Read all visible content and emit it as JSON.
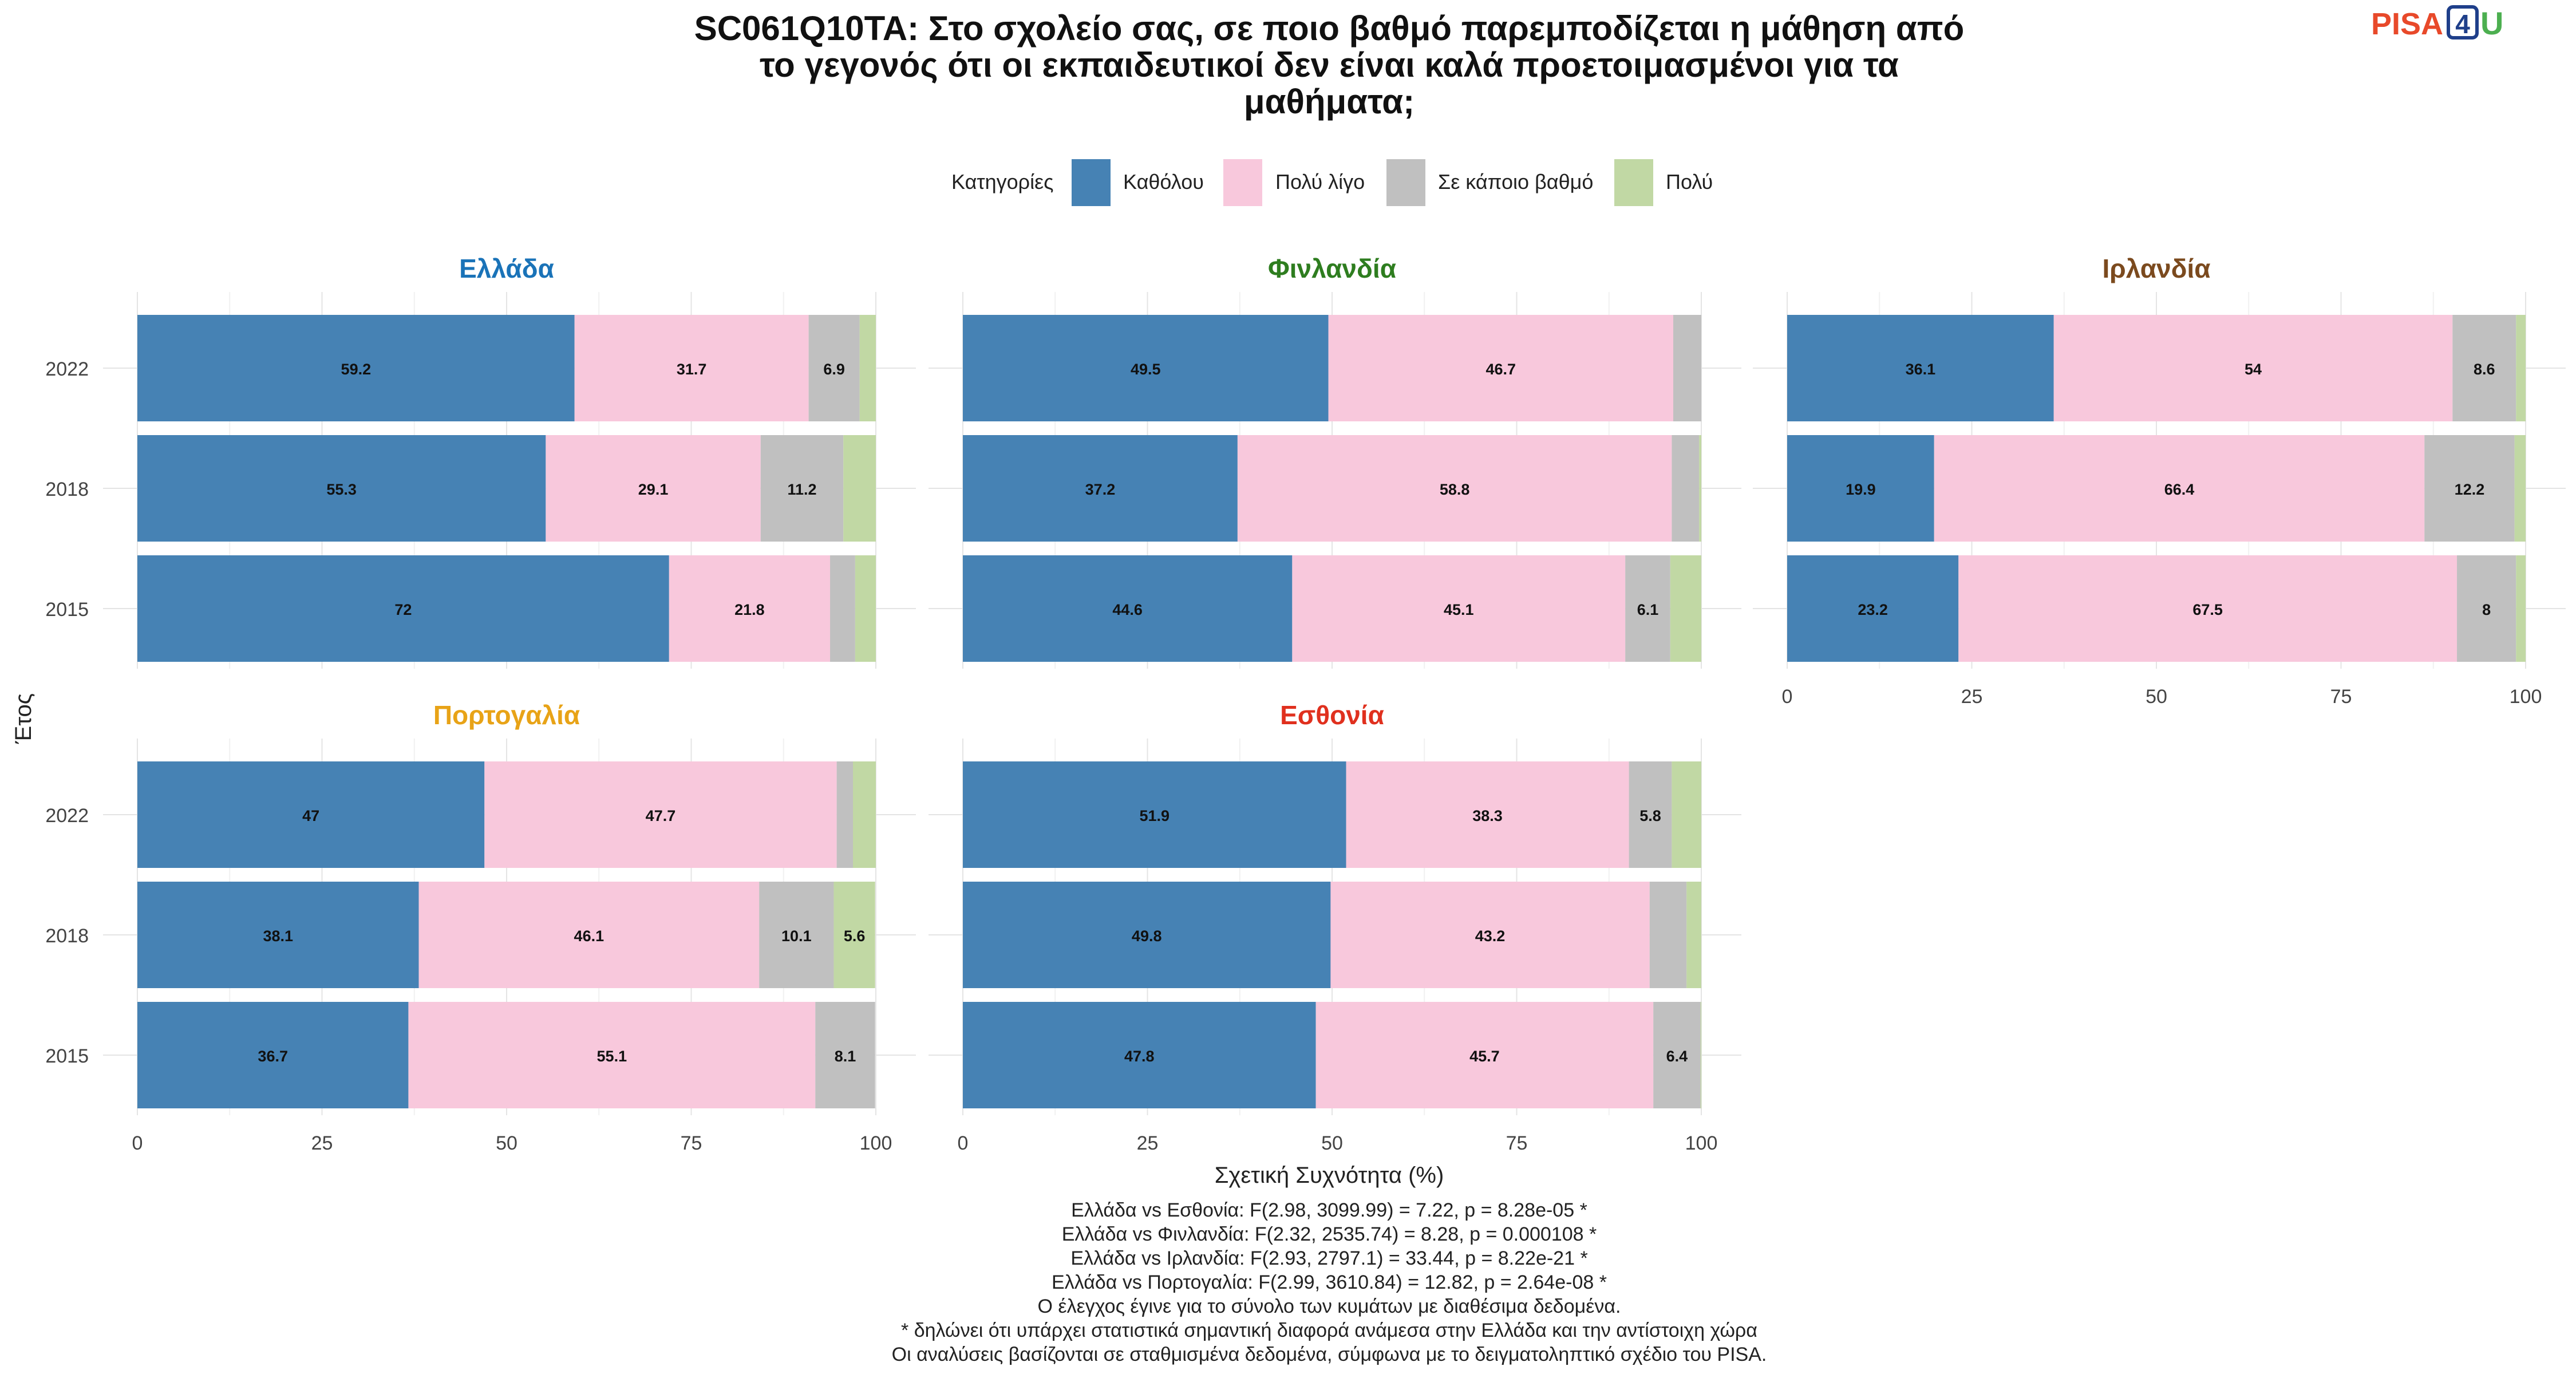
{
  "logo": {
    "text_main": "PISA",
    "text_num": "4",
    "text_end": "U"
  },
  "title_lines": [
    "SC061Q10TA: Στο σχολείο σας, σε ποιο βαθμό παρεμποδίζεται η μάθηση από",
    "το γεγονός ότι οι εκπαιδευτικοί δεν είναι καλά προετοιμασμένοι για τα",
    "μαθήματα;"
  ],
  "legend": {
    "title": "Κατηγορίες",
    "position": "top",
    "items": [
      {
        "label": "Καθόλου",
        "color": "#4682B4"
      },
      {
        "label": "Πολύ λίγο",
        "color": "#F8C8DC"
      },
      {
        "label": "Σε κάποιο βαθμό",
        "color": "#C0C0C0"
      },
      {
        "label": "Πολύ",
        "color": "#C1D8A4"
      }
    ]
  },
  "chart_data": {
    "type": "bar",
    "orientation": "horizontal-stacked",
    "xlabel": "Σχετική Συχνότητα (%)",
    "ylabel": "Έτος",
    "xlim": [
      0,
      100
    ],
    "xticks": [
      0,
      25,
      50,
      75,
      100
    ],
    "categories": [
      "2022",
      "2018",
      "2015"
    ],
    "grid": true,
    "panels": [
      {
        "country": "Ελλάδα",
        "title_color": "#1A73B8",
        "rows": [
          {
            "year": "2022",
            "values": [
              59.2,
              31.7,
              6.9,
              2.2
            ],
            "labels": [
              "59.2",
              "31.7",
              "6.9",
              ""
            ]
          },
          {
            "year": "2018",
            "values": [
              55.3,
              29.1,
              11.2,
              4.4
            ],
            "labels": [
              "55.3",
              "29.1",
              "11.2",
              ""
            ]
          },
          {
            "year": "2015",
            "values": [
              72,
              21.8,
              3.4,
              2.8
            ],
            "labels": [
              "72",
              "21.8",
              "",
              ""
            ]
          }
        ]
      },
      {
        "country": "Φινλανδία",
        "title_color": "#2E7D1F",
        "rows": [
          {
            "year": "2022",
            "values": [
              49.5,
              46.7,
              3.8,
              0
            ],
            "labels": [
              "49.5",
              "46.7",
              "",
              ""
            ]
          },
          {
            "year": "2018",
            "values": [
              37.2,
              58.8,
              3.7,
              0.3
            ],
            "labels": [
              "37.2",
              "58.8",
              "",
              ""
            ]
          },
          {
            "year": "2015",
            "values": [
              44.6,
              45.1,
              6.1,
              4.2
            ],
            "labels": [
              "44.6",
              "45.1",
              "6.1",
              ""
            ]
          }
        ]
      },
      {
        "country": "Ιρλανδία",
        "title_color": "#7B4A1E",
        "rows": [
          {
            "year": "2022",
            "values": [
              36.1,
              54,
              8.6,
              1.3
            ],
            "labels": [
              "36.1",
              "54",
              "8.6",
              ""
            ]
          },
          {
            "year": "2018",
            "values": [
              19.9,
              66.4,
              12.2,
              1.5
            ],
            "labels": [
              "19.9",
              "66.4",
              "12.2",
              ""
            ]
          },
          {
            "year": "2015",
            "values": [
              23.2,
              67.5,
              8,
              1.3
            ],
            "labels": [
              "23.2",
              "67.5",
              "8",
              ""
            ]
          }
        ]
      },
      {
        "country": "Πορτογαλία",
        "title_color": "#E8A317",
        "rows": [
          {
            "year": "2022",
            "values": [
              47,
              47.7,
              2.2,
              3.1
            ],
            "labels": [
              "47",
              "47.7",
              "",
              ""
            ]
          },
          {
            "year": "2018",
            "values": [
              38.1,
              46.1,
              10.1,
              5.6
            ],
            "labels": [
              "38.1",
              "46.1",
              "10.1",
              "5.6"
            ]
          },
          {
            "year": "2015",
            "values": [
              36.7,
              55.1,
              8.1,
              0
            ],
            "labels": [
              "36.7",
              "55.1",
              "8.1",
              ""
            ]
          }
        ]
      },
      {
        "country": "Εσθονία",
        "title_color": "#E0301E",
        "rows": [
          {
            "year": "2022",
            "values": [
              51.9,
              38.3,
              5.8,
              4
            ],
            "labels": [
              "51.9",
              "38.3",
              "5.8",
              ""
            ]
          },
          {
            "year": "2018",
            "values": [
              49.8,
              43.2,
              5,
              2
            ],
            "labels": [
              "49.8",
              "43.2",
              "",
              ""
            ]
          },
          {
            "year": "2015",
            "values": [
              47.8,
              45.7,
              6.4,
              0.1
            ],
            "labels": [
              "47.8",
              "45.7",
              "6.4",
              ""
            ]
          }
        ]
      }
    ]
  },
  "footnotes": [
    "Ελλάδα vs Εσθονία: F(2.98, 3099.99) = 7.22, p = 8.28e-05 *",
    "Ελλάδα vs Φινλανδία: F(2.32, 2535.74) = 8.28, p = 0.000108 *",
    "Ελλάδα vs Ιρλανδία: F(2.93, 2797.1) = 33.44, p = 8.22e-21 *",
    "Ελλάδα vs Πορτογαλία: F(2.99, 3610.84) = 12.82, p = 2.64e-08 *",
    "Ο έλεγχος έγινε για το σύνολο των κυμάτων με διαθέσιμα δεδομένα.",
    "* δηλώνει ότι υπάρχει στατιστικά σημαντική διαφορά ανάμεσα στην Ελλάδα και την αντίστοιχη χώρα",
    "Οι αναλύσεις βασίζονται σε σταθμισμένα δεδομένα, σύμφωνα με το δειγματοληπτικό σχέδιο του PISA."
  ]
}
